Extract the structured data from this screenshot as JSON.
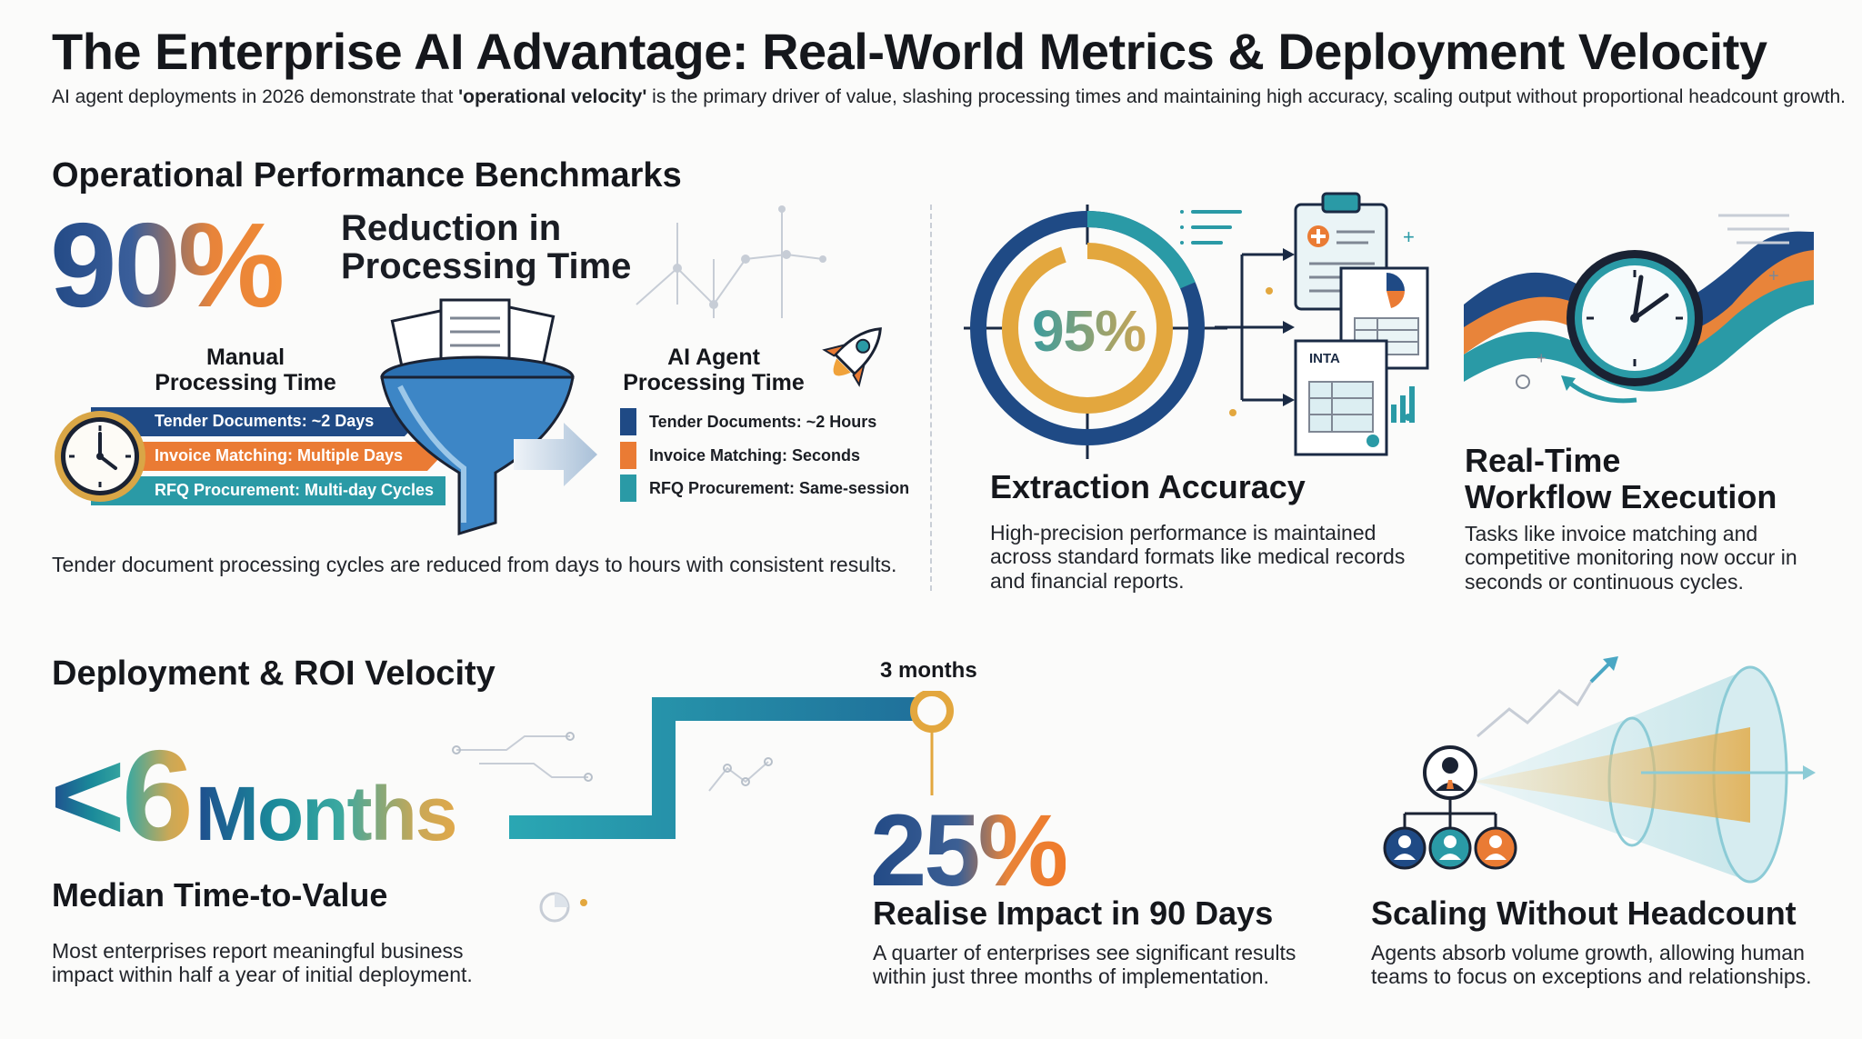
{
  "header": {
    "title": "The Enterprise AI Advantage: Real-World Metrics & Deployment Velocity",
    "subtitle_pre": "AI agent deployments in 2026 demonstrate that ",
    "subtitle_bold": "'operational velocity'",
    "subtitle_post": " is the primary driver of value, slashing processing times and maintaining high accuracy, scaling output without proportional headcount growth."
  },
  "operational": {
    "heading": "Operational Performance Benchmarks",
    "stat_value": "90%",
    "stat_label_line1": "Reduction in",
    "stat_label_line2": "Processing Time",
    "manual_heading_line1": "Manual",
    "manual_heading_line2": "Processing Time",
    "manual_items": [
      {
        "label": "Tender Documents: ~2 Days",
        "color": "#1f4a85"
      },
      {
        "label": "Invoice Matching: Multiple Days",
        "color": "#ea7b34"
      },
      {
        "label": "RFQ Procurement: Multi-day Cycles",
        "color": "#2a9aa6"
      }
    ],
    "ai_heading_line1": "AI Agent",
    "ai_heading_line2": "Processing Time",
    "ai_items": [
      {
        "label": "Tender Documents: ~2 Hours",
        "color": "#1f4a85"
      },
      {
        "label": "Invoice Matching: Seconds",
        "color": "#ea7b34"
      },
      {
        "label": "RFQ Procurement: Same-session",
        "color": "#2a9aa6"
      }
    ],
    "footnote": "Tender document processing cycles are reduced from days to hours with consistent results."
  },
  "accuracy": {
    "ring_value": "95%",
    "ring_fraction": 0.95,
    "doc_label": "INTA",
    "heading": "Extraction Accuracy",
    "body": "High-precision performance is maintained across standard formats like medical records and financial reports."
  },
  "realtime": {
    "heading_line1": "Real-Time",
    "heading_line2": "Workflow Execution",
    "body": "Tasks like invoice matching and competitive monitoring now occur in seconds or continuous cycles."
  },
  "deployment": {
    "heading": "Deployment & ROI Velocity",
    "stat_prefix": "<6",
    "stat_suffix": "Months",
    "stat_label": "Median Time-to-Value",
    "body": "Most enterprises report meaningful business impact within half a year of initial deployment.",
    "milestone_label": "3 months"
  },
  "impact": {
    "stat_value": "25%",
    "heading": "Realise Impact in 90 Days",
    "body": "A quarter of enterprises see significant results within just three months of implementation."
  },
  "scaling": {
    "heading": "Scaling Without Headcount",
    "body": "Agents absorb volume growth, allowing human teams to focus on exceptions and relationships."
  },
  "colors": {
    "navy": "#1f4a85",
    "orange": "#ea7b34",
    "teal": "#2a9aa6",
    "gold": "#e3a73e"
  }
}
